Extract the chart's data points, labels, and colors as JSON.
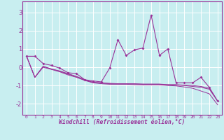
{
  "xlabel": "Windchill (Refroidissement éolien,°C)",
  "x_ticks": [
    0,
    1,
    2,
    3,
    4,
    5,
    6,
    7,
    8,
    9,
    10,
    11,
    12,
    13,
    14,
    15,
    16,
    17,
    18,
    19,
    20,
    21,
    22,
    23
  ],
  "y_ticks": [
    -2,
    -1,
    0,
    1,
    2,
    3
  ],
  "xlim": [
    -0.5,
    23.5
  ],
  "ylim": [
    -2.6,
    3.6
  ],
  "bg_color": "#c8eef0",
  "line_color": "#993399",
  "grid_color": "#ffffff",
  "series_main": [
    0.6,
    0.6,
    0.2,
    0.1,
    -0.05,
    -0.3,
    -0.35,
    -0.68,
    -0.75,
    -0.8,
    -0.05,
    1.5,
    0.65,
    0.95,
    1.05,
    2.85,
    0.65,
    1.0,
    -0.85,
    -0.85,
    -0.85,
    -0.55,
    -1.1,
    -1.85
  ],
  "series_trend1": [
    0.6,
    -0.55,
    0.05,
    -0.1,
    -0.2,
    -0.35,
    -0.5,
    -0.68,
    -0.82,
    -0.85,
    -0.88,
    -0.9,
    -0.9,
    -0.9,
    -0.92,
    -0.92,
    -0.92,
    -0.95,
    -0.95,
    -0.98,
    -1.0,
    -1.05,
    -1.15,
    -1.85
  ],
  "series_trend2": [
    0.6,
    -0.55,
    0.05,
    -0.1,
    -0.22,
    -0.38,
    -0.52,
    -0.7,
    -0.83,
    -0.87,
    -0.9,
    -0.91,
    -0.91,
    -0.92,
    -0.93,
    -0.93,
    -0.93,
    -0.96,
    -0.97,
    -1.0,
    -1.05,
    -1.1,
    -1.2,
    -1.85
  ],
  "series_trend3": [
    0.6,
    -0.55,
    0.0,
    -0.12,
    -0.25,
    -0.42,
    -0.55,
    -0.72,
    -0.85,
    -0.9,
    -0.93,
    -0.93,
    -0.93,
    -0.95,
    -0.96,
    -0.96,
    -0.96,
    -1.0,
    -1.02,
    -1.08,
    -1.15,
    -1.3,
    -1.45,
    -2.05
  ]
}
